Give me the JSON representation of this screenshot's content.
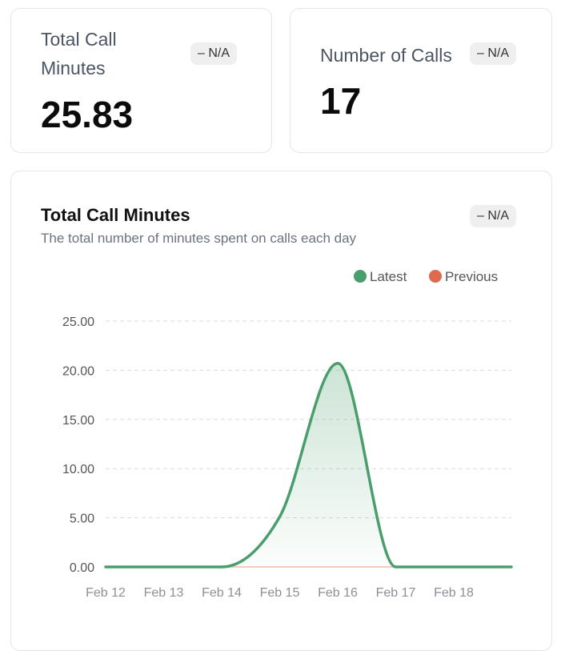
{
  "kpis": {
    "minutes": {
      "label": "Total Call Minutes",
      "value": "25.83",
      "badge": "– N/A"
    },
    "calls": {
      "label": "Number of Calls",
      "value": "17",
      "badge": "– N/A"
    }
  },
  "chart_card": {
    "title": "Total Call Minutes",
    "subtitle": "The total number of minutes spent on calls each day",
    "badge": "– N/A"
  },
  "chart_data": {
    "type": "area",
    "categories": [
      "Feb 12",
      "Feb 13",
      "Feb 14",
      "Feb 15",
      "Feb 16",
      "Feb 17",
      "Feb 18"
    ],
    "series": [
      {
        "name": "Latest",
        "color": "#4a9e6b",
        "values": [
          0,
          0,
          0,
          5.1,
          20.7,
          0,
          0
        ]
      },
      {
        "name": "Previous",
        "color": "#e06a4d",
        "values": [
          0,
          0,
          0,
          0,
          0,
          0,
          0
        ]
      }
    ],
    "ylim": [
      0,
      25
    ],
    "yticks": [
      "0.00",
      "5.00",
      "10.00",
      "15.00",
      "20.00",
      "25.00"
    ],
    "grid": true,
    "legend": "top-right"
  }
}
